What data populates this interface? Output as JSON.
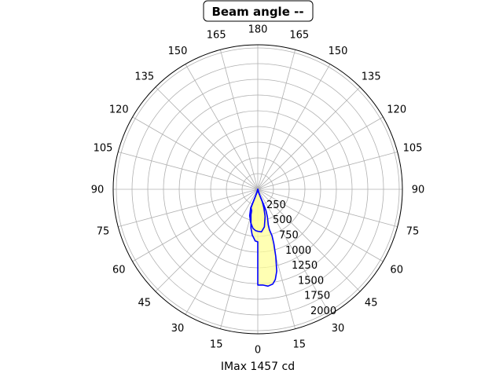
{
  "chart_data": {
    "type": "polar-line",
    "title": "Beam angle --",
    "xlabel": "IMax 1457 cd",
    "angle_tick_labels": [
      "0",
      "15",
      "30",
      "45",
      "60",
      "75",
      "90",
      "105",
      "120",
      "135",
      "150",
      "165",
      "180",
      "165",
      "150",
      "135",
      "120",
      "105",
      "90",
      "75",
      "60",
      "45",
      "30",
      "15"
    ],
    "radial_tick_labels": [
      "250",
      "500",
      "750",
      "1000",
      "1250",
      "1500",
      "1750",
      "2000"
    ],
    "radial_ticks": [
      250,
      500,
      750,
      1000,
      1250,
      1500,
      1750,
      2000
    ],
    "rlim": [
      0,
      2200
    ],
    "zero_direction": "bottom",
    "grid": true,
    "series": [
      {
        "color": "#0000ff",
        "fill": "#ffff99",
        "points": [
          [
            0,
            1457
          ],
          [
            3,
            1459
          ],
          [
            6,
            1482
          ],
          [
            9,
            1460
          ],
          [
            11,
            1400
          ],
          [
            13,
            1280
          ],
          [
            15,
            1060
          ],
          [
            16.5,
            860
          ],
          [
            17,
            740
          ],
          [
            16,
            640
          ],
          [
            16.5,
            560
          ],
          [
            19,
            450
          ],
          [
            21,
            350
          ],
          [
            21,
            250
          ],
          [
            20,
            160
          ],
          [
            15,
            60
          ],
          [
            0,
            0
          ],
          [
            -15,
            40
          ],
          [
            -19,
            130
          ],
          [
            -20,
            200
          ],
          [
            -20,
            300
          ],
          [
            -16,
            340
          ],
          [
            -15,
            400
          ],
          [
            -12,
            500
          ],
          [
            -10,
            600
          ],
          [
            -7,
            700
          ],
          [
            -4,
            760
          ],
          [
            -3,
            787
          ],
          [
            0,
            800
          ]
        ]
      },
      {
        "color": "#0000ff",
        "fill": "#ffff99",
        "points": [
          [
            0,
            640
          ],
          [
            5,
            650
          ],
          [
            10,
            580
          ],
          [
            15,
            430
          ],
          [
            18,
            300
          ],
          [
            20,
            200
          ],
          [
            18,
            100
          ],
          [
            15,
            50
          ],
          [
            0,
            0
          ],
          [
            -15,
            50
          ],
          [
            -18,
            100
          ],
          [
            -20,
            200
          ],
          [
            -21,
            300
          ],
          [
            -17,
            420
          ],
          [
            -12,
            520
          ],
          [
            -7,
            600
          ],
          [
            -3,
            630
          ],
          [
            0,
            640
          ]
        ]
      }
    ]
  }
}
